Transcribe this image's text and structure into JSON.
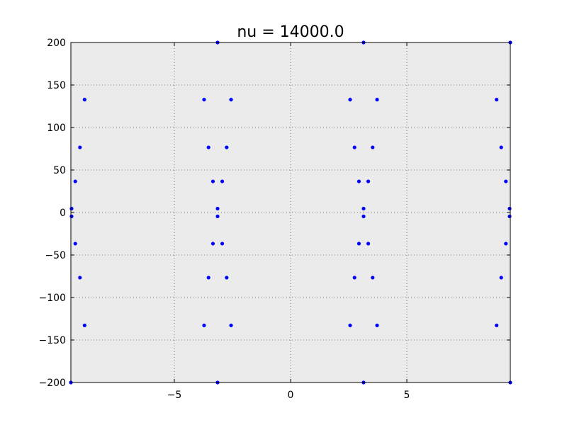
{
  "chart_data": {
    "type": "scatter",
    "title": "nu = 14000.0",
    "xlabel": "",
    "ylabel": "",
    "xlim": [
      -9.45,
      9.45
    ],
    "ylim": [
      -200,
      200
    ],
    "grid": true,
    "colors": {
      "background": "#ebebeb",
      "points": "#0000ff",
      "grid": "#555555",
      "axes": "#000000"
    },
    "x_ticks": [
      {
        "value": -5,
        "label": "−5"
      },
      {
        "value": 0,
        "label": "0"
      },
      {
        "value": 5,
        "label": "5"
      }
    ],
    "y_ticks": [
      {
        "value": 200,
        "label": "200"
      },
      {
        "value": 150,
        "label": "150"
      },
      {
        "value": 100,
        "label": "100"
      },
      {
        "value": 50,
        "label": "50"
      },
      {
        "value": 0,
        "label": "0"
      },
      {
        "value": -50,
        "label": "−50"
      },
      {
        "value": -100,
        "label": "−100"
      },
      {
        "value": -150,
        "label": "−150"
      },
      {
        "value": -200,
        "label": "−200"
      }
    ],
    "series": [
      {
        "points": [
          [
            -3.14,
            200
          ],
          [
            3.14,
            200
          ],
          [
            9.45,
            200
          ],
          [
            -9.45,
            -200
          ],
          [
            -3.14,
            -200
          ],
          [
            3.14,
            -200
          ],
          [
            9.45,
            -200
          ],
          [
            -8.86,
            132.8
          ],
          [
            -3.72,
            132.8
          ],
          [
            -2.56,
            132.8
          ],
          [
            2.56,
            132.8
          ],
          [
            3.72,
            132.8
          ],
          [
            8.86,
            132.8
          ],
          [
            -8.86,
            -132.8
          ],
          [
            -3.72,
            -132.8
          ],
          [
            -2.56,
            -132.8
          ],
          [
            2.56,
            -132.8
          ],
          [
            3.72,
            -132.8
          ],
          [
            8.86,
            -132.8
          ],
          [
            -9.06,
            76.6
          ],
          [
            -3.53,
            76.6
          ],
          [
            -2.75,
            76.6
          ],
          [
            2.75,
            76.6
          ],
          [
            3.53,
            76.6
          ],
          [
            9.06,
            76.6
          ],
          [
            -9.06,
            -76.6
          ],
          [
            -3.53,
            -76.6
          ],
          [
            -2.75,
            -76.6
          ],
          [
            2.75,
            -76.6
          ],
          [
            3.53,
            -76.6
          ],
          [
            9.06,
            -76.6
          ],
          [
            -9.26,
            36.6
          ],
          [
            -3.34,
            36.6
          ],
          [
            -2.94,
            36.6
          ],
          [
            2.94,
            36.6
          ],
          [
            3.34,
            36.6
          ],
          [
            9.26,
            36.6
          ],
          [
            -9.26,
            -36.6
          ],
          [
            -3.34,
            -36.6
          ],
          [
            -2.94,
            -36.6
          ],
          [
            2.94,
            -36.6
          ],
          [
            3.34,
            -36.6
          ],
          [
            9.26,
            -36.6
          ],
          [
            -9.42,
            4.6
          ],
          [
            -3.14,
            4.6
          ],
          [
            3.14,
            4.6
          ],
          [
            9.42,
            4.6
          ],
          [
            -9.42,
            -4.6
          ],
          [
            -3.14,
            -4.6
          ],
          [
            3.14,
            -4.6
          ],
          [
            9.42,
            -4.6
          ]
        ]
      }
    ]
  }
}
